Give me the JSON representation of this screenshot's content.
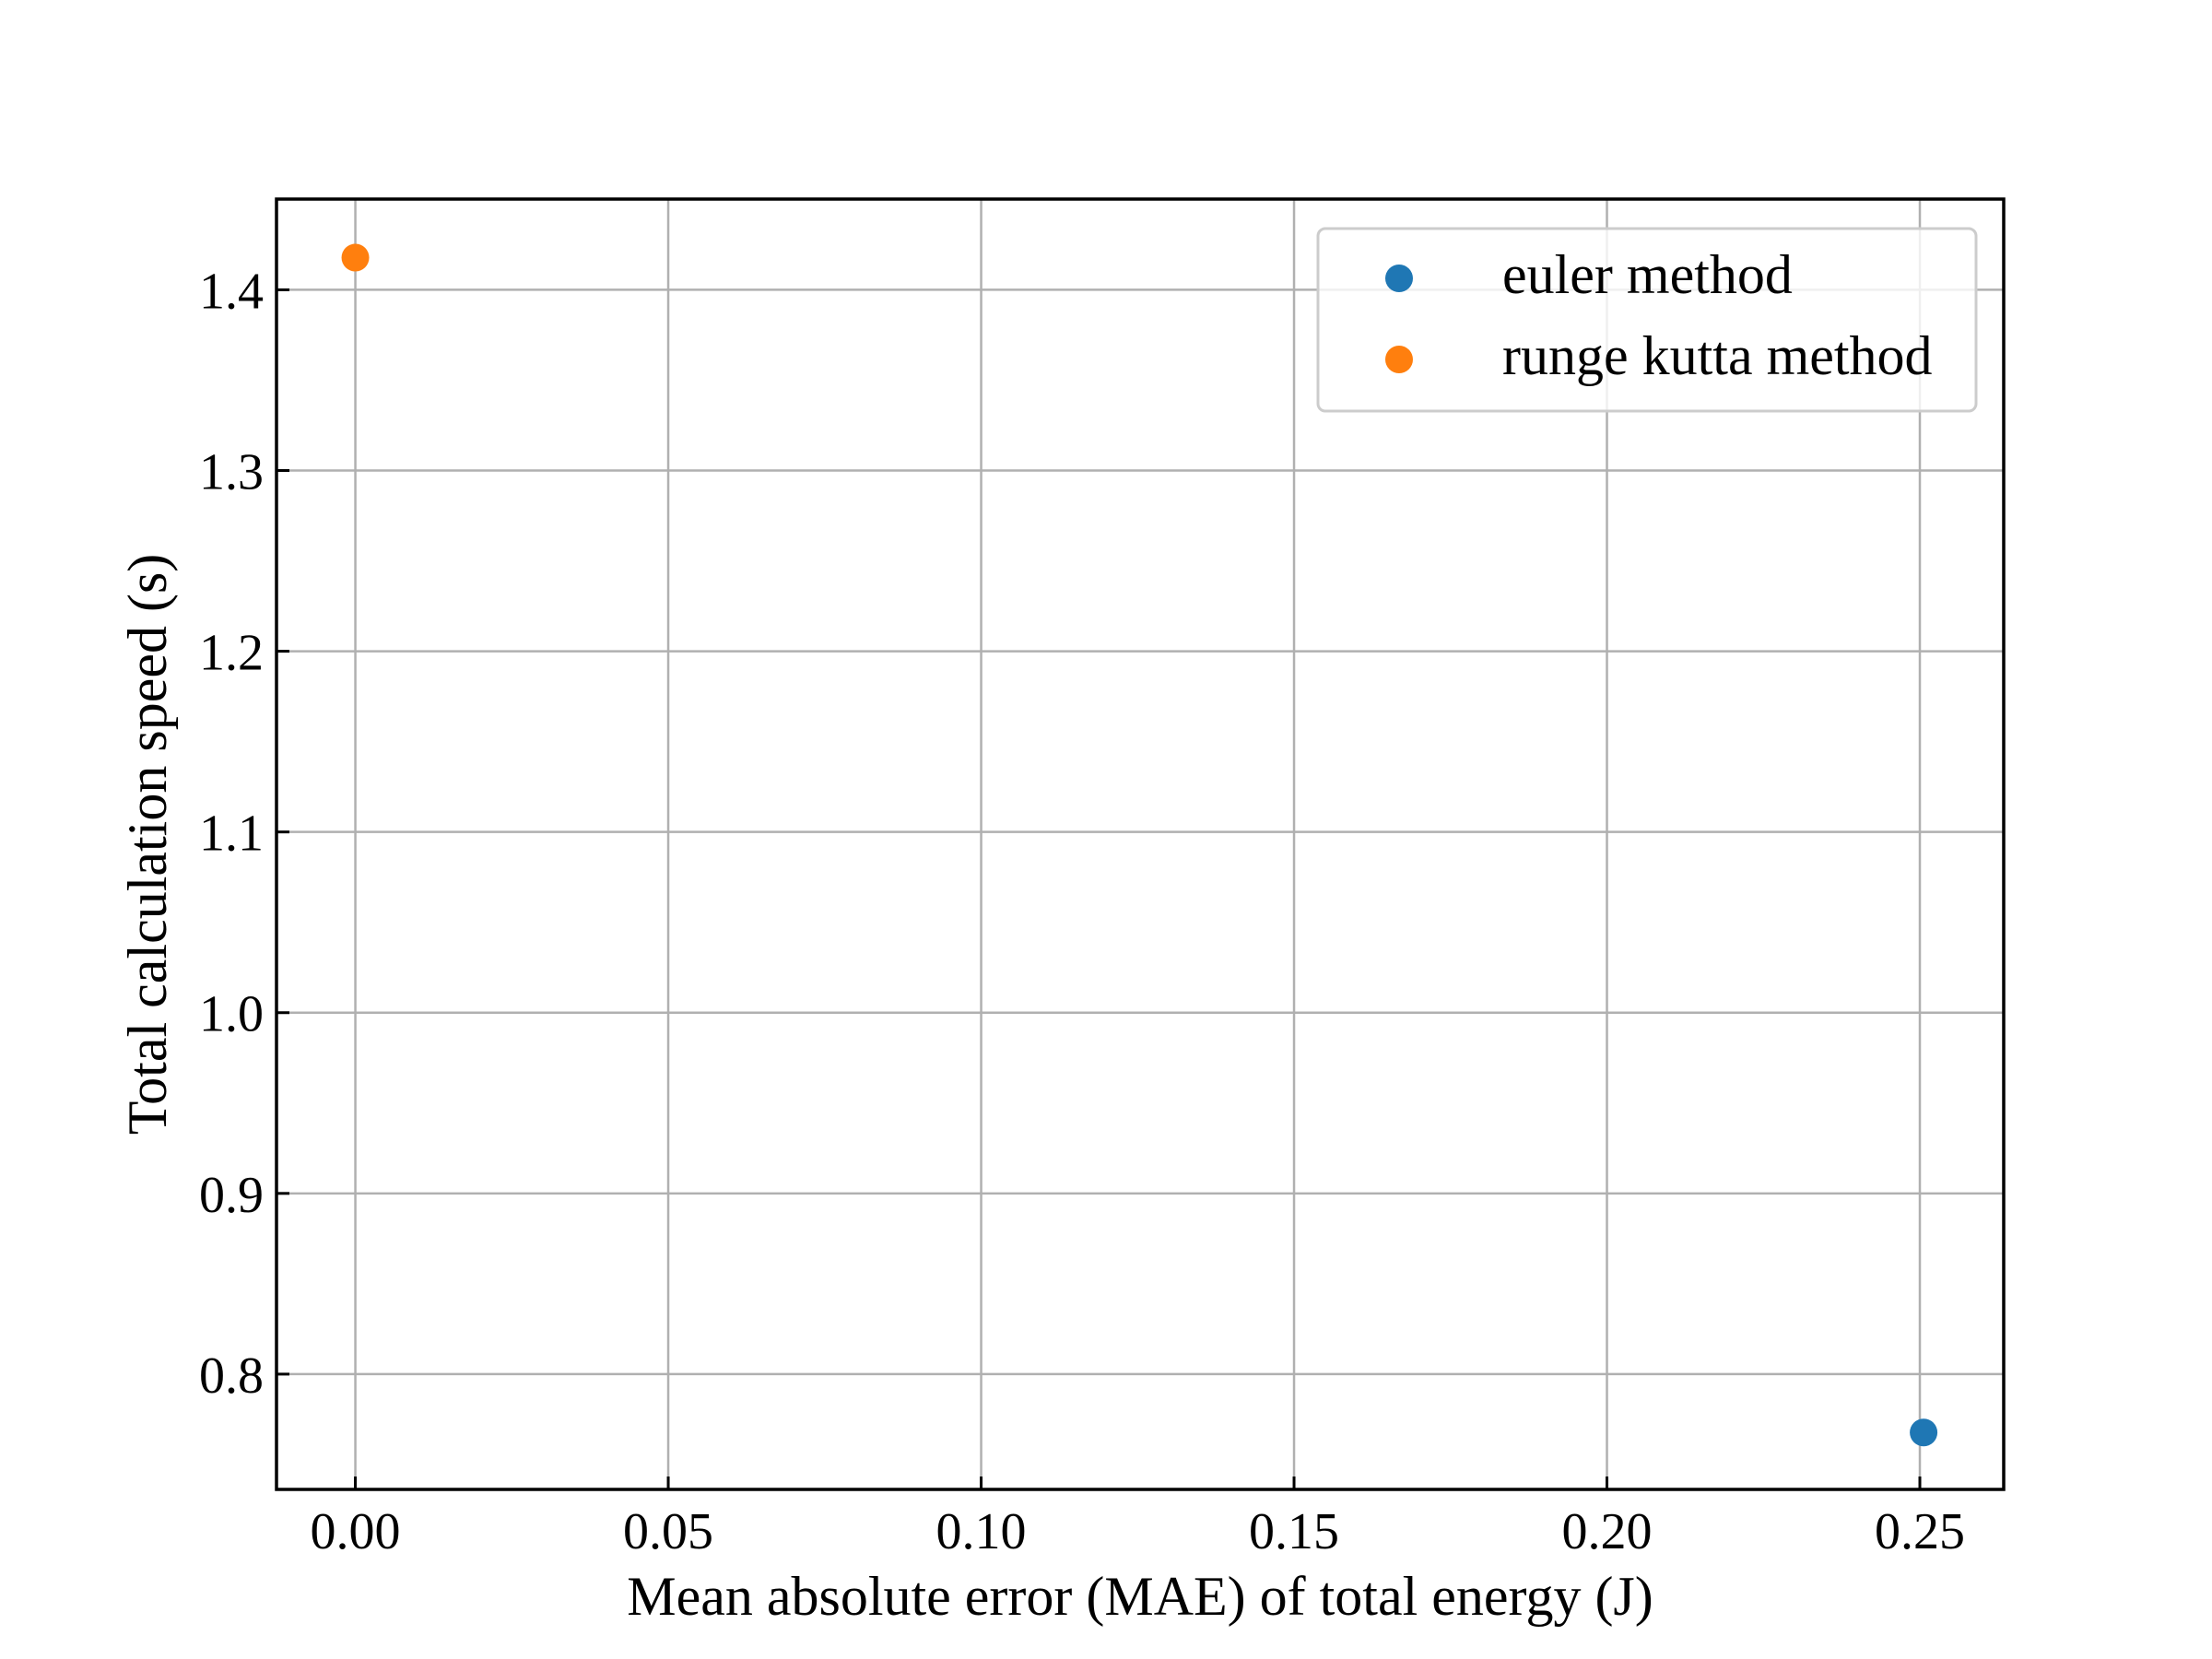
{
  "chart_data": {
    "type": "scatter",
    "title": "",
    "xlabel": "Mean absolute error (MAE) of total energy (J)",
    "ylabel": "Total calculation speed (s)",
    "xlim": [
      -0.0126,
      0.2634
    ],
    "ylim": [
      0.7362,
      1.4502
    ],
    "x_ticks": [
      0.0,
      0.05,
      0.1,
      0.15,
      0.2,
      0.25
    ],
    "x_tick_labels": [
      "0.00",
      "0.05",
      "0.10",
      "0.15",
      "0.20",
      "0.25"
    ],
    "y_ticks": [
      0.8,
      0.9,
      1.0,
      1.1,
      1.2,
      1.3,
      1.4
    ],
    "y_tick_labels": [
      "0.8",
      "0.9",
      "1.0",
      "1.1",
      "1.2",
      "1.3",
      "1.4"
    ],
    "grid": true,
    "legend_position": "top-right",
    "series": [
      {
        "name": "euler method",
        "color": "#1f77b4",
        "points": [
          {
            "x": 0.2506,
            "y": 0.7677
          }
        ]
      },
      {
        "name": "runge kutta method",
        "color": "#ff7f0e",
        "points": [
          {
            "x": 0.0,
            "y": 1.4178
          }
        ]
      }
    ]
  }
}
